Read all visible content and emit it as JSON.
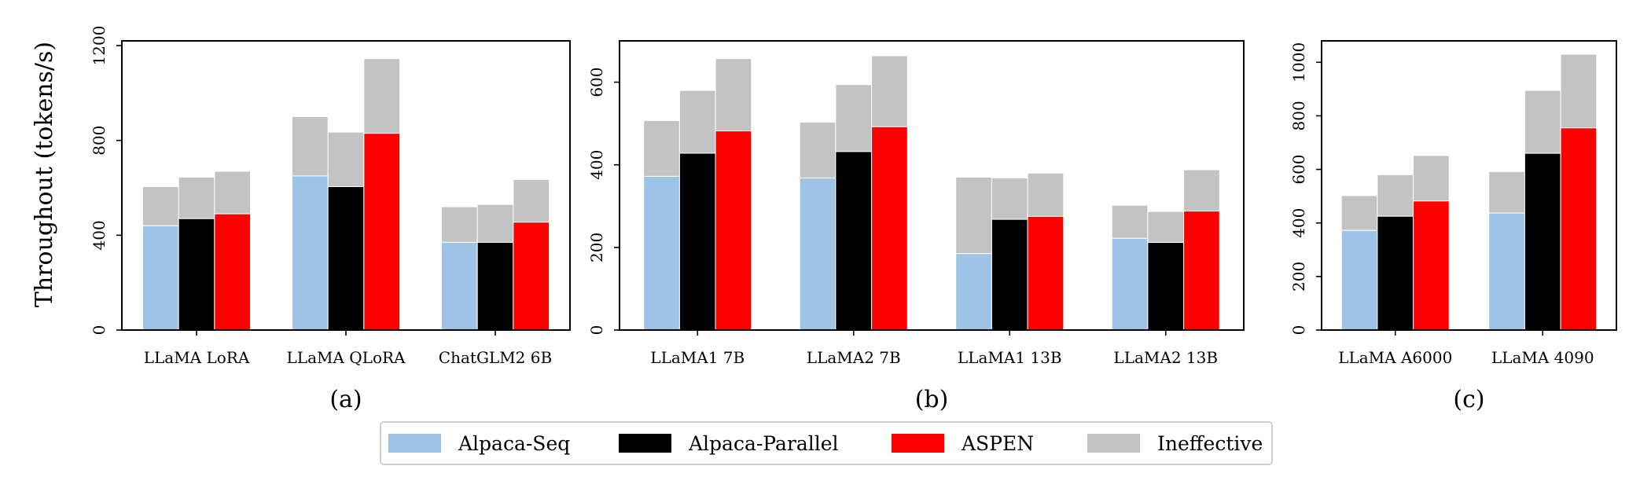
{
  "colors": {
    "Alpaca-Seq": "#9dc3e6",
    "Alpaca-Parallel": "#000000",
    "ASPEN": "#ff0000",
    "Ineffective": "#c3c3c3"
  },
  "chart_data": [
    {
      "type": "bar",
      "panel_label": "(a)",
      "ylabel": "Throughout (tokens/s)",
      "ylim": [
        0,
        1220
      ],
      "yticks": [
        0,
        400,
        800,
        1200
      ],
      "categories": [
        "LLaMA LoRA",
        "LLaMA QLoRA",
        "ChatGLM2 6B"
      ],
      "series": [
        {
          "name": "Alpaca-Seq",
          "effective": [
            440,
            650,
            370
          ],
          "ineffective": [
            165,
            250,
            150
          ]
        },
        {
          "name": "Alpaca-Parallel",
          "effective": [
            470,
            605,
            370
          ],
          "ineffective": [
            175,
            230,
            160
          ]
        },
        {
          "name": "ASPEN",
          "effective": [
            490,
            830,
            455
          ],
          "ineffective": [
            180,
            315,
            180
          ]
        }
      ]
    },
    {
      "type": "bar",
      "panel_label": "(b)",
      "ylabel": "",
      "ylim": [
        0,
        700
      ],
      "yticks": [
        0,
        200,
        400,
        600
      ],
      "categories": [
        "LLaMA1 7B",
        "LLaMA2 7B",
        "LLaMA1 13B",
        "LLaMA2 13B"
      ],
      "series": [
        {
          "name": "Alpaca-Seq",
          "effective": [
            372,
            368,
            185,
            222
          ],
          "ineffective": [
            135,
            135,
            185,
            80
          ]
        },
        {
          "name": "Alpaca-Parallel",
          "effective": [
            428,
            432,
            268,
            212
          ],
          "ineffective": [
            152,
            162,
            100,
            75
          ]
        },
        {
          "name": "ASPEN",
          "effective": [
            482,
            492,
            275,
            288
          ],
          "ineffective": [
            175,
            172,
            105,
            100
          ]
        }
      ]
    },
    {
      "type": "bar",
      "panel_label": "(c)",
      "ylabel": "",
      "ylim": [
        0,
        1080
      ],
      "yticks": [
        0,
        200,
        400,
        600,
        800,
        1000
      ],
      "categories": [
        "LLaMA A6000",
        "LLaMA 4090"
      ],
      "series": [
        {
          "name": "Alpaca-Seq",
          "effective": [
            372,
            437
          ],
          "ineffective": [
            130,
            155
          ]
        },
        {
          "name": "Alpaca-Parallel",
          "effective": [
            425,
            660
          ],
          "ineffective": [
            155,
            235
          ]
        },
        {
          "name": "ASPEN",
          "effective": [
            482,
            755
          ],
          "ineffective": [
            170,
            275
          ]
        }
      ]
    }
  ],
  "legend": {
    "position": "bottom-center",
    "items": [
      "Alpaca-Seq",
      "Alpaca-Parallel",
      "ASPEN",
      "Ineffective"
    ]
  }
}
